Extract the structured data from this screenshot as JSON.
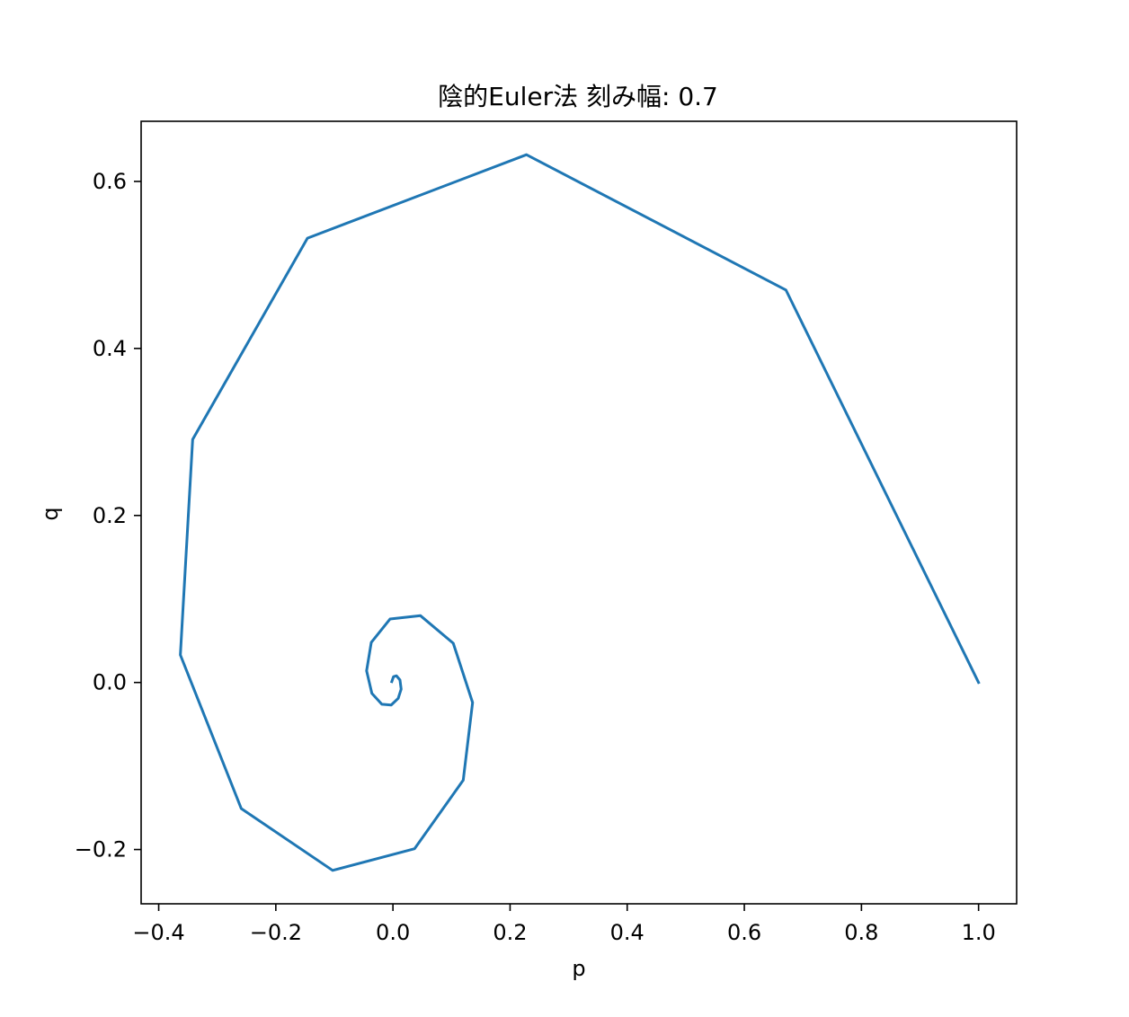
{
  "chart_data": {
    "type": "line",
    "title": "陰的Euler法 刻み幅: 0.7",
    "xlabel": "p",
    "ylabel": "q",
    "xlim": [
      -0.43,
      1.065
    ],
    "ylim": [
      -0.265,
      0.672
    ],
    "grid": false,
    "x_ticks": [
      {
        "value": -0.4,
        "label": "−0.4"
      },
      {
        "value": -0.2,
        "label": "−0.2"
      },
      {
        "value": 0.0,
        "label": "0.0"
      },
      {
        "value": 0.2,
        "label": "0.2"
      },
      {
        "value": 0.4,
        "label": "0.4"
      },
      {
        "value": 0.6,
        "label": "0.6"
      },
      {
        "value": 0.8,
        "label": "0.8"
      },
      {
        "value": 1.0,
        "label": "1.0"
      }
    ],
    "y_ticks": [
      {
        "value": -0.2,
        "label": "−0.2"
      },
      {
        "value": 0.0,
        "label": "0.0"
      },
      {
        "value": 0.2,
        "label": "0.2"
      },
      {
        "value": 0.4,
        "label": "0.4"
      },
      {
        "value": 0.6,
        "label": "0.6"
      }
    ],
    "series": [
      {
        "color": "#1f77b4",
        "x": [
          1.0,
          0.671,
          0.228,
          -0.146,
          -0.342,
          -0.363,
          -0.259,
          -0.103,
          0.037,
          0.12,
          0.136,
          0.103,
          0.047,
          -0.005,
          -0.037,
          -0.045,
          -0.036,
          -0.019,
          -0.003,
          0.009,
          0.014,
          0.012,
          0.006,
          0.001,
          -0.002
        ],
        "y": [
          0.0,
          0.47,
          0.632,
          0.532,
          0.291,
          0.033,
          -0.151,
          -0.225,
          -0.199,
          -0.117,
          -0.024,
          0.047,
          0.08,
          0.076,
          0.048,
          0.014,
          -0.013,
          -0.026,
          -0.027,
          -0.019,
          -0.008,
          0.003,
          0.008,
          0.007,
          0.001
        ]
      }
    ]
  }
}
